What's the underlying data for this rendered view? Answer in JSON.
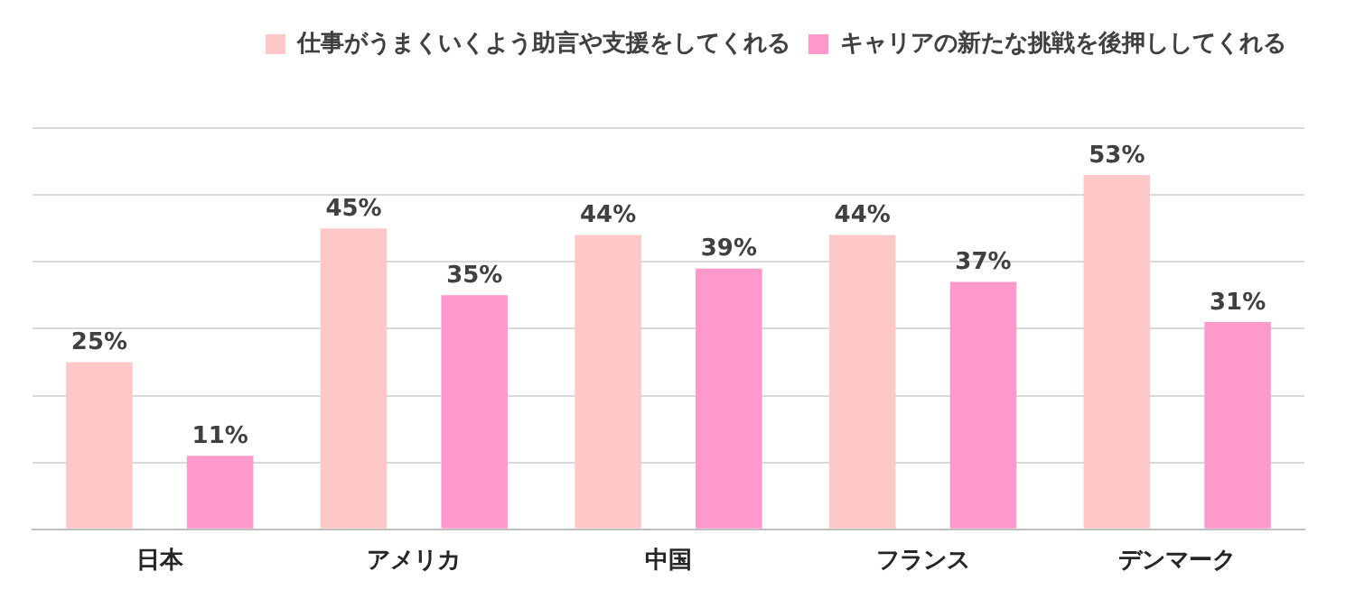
{
  "chart_data": {
    "type": "bar",
    "categories": [
      "日本",
      "アメリカ",
      "中国",
      "フランス",
      "デンマーク"
    ],
    "series": [
      {
        "name": "仕事がうまくいくよう助言や支援をしてくれる",
        "color": "#ffc7c7",
        "values": [
          25,
          45,
          44,
          44,
          53
        ],
        "value_labels": [
          "25%",
          "45%",
          "44%",
          "44%",
          "53%"
        ]
      },
      {
        "name": "キャリアの新たな挑戦を後押ししてくれる",
        "color": "#ff99cc",
        "values": [
          11,
          35,
          39,
          37,
          31
        ],
        "value_labels": [
          "11%",
          "35%",
          "39%",
          "37%",
          "31%"
        ]
      }
    ],
    "ylim": [
      0,
      60
    ],
    "yticks": [
      {
        "value": 0,
        "label": null
      },
      {
        "value": 10,
        "label": null
      },
      {
        "value": 20,
        "label": null
      },
      {
        "value": 30,
        "label": null
      },
      {
        "value": 40,
        "label": null
      },
      {
        "value": 50,
        "label": null
      },
      {
        "value": 60,
        "label": null
      }
    ],
    "grid": "y",
    "legend": "top right",
    "tick_labels": "x"
  }
}
